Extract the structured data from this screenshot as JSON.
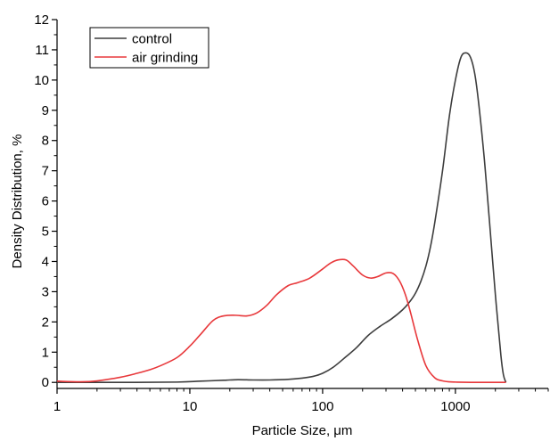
{
  "chart_data": {
    "type": "line",
    "title": "",
    "xlabel": "Particle Size, μm",
    "ylabel": "Density Distribution, %",
    "x_scale": "log",
    "xlim": [
      1,
      5000
    ],
    "ylim": [
      -0.2,
      12
    ],
    "x_ticks": [
      1,
      10,
      100,
      1000
    ],
    "x_tick_labels": [
      "1",
      "10",
      "100",
      "1000"
    ],
    "y_ticks": [
      0,
      1,
      2,
      3,
      4,
      5,
      6,
      7,
      8,
      9,
      10,
      11,
      12
    ],
    "y_tick_labels": [
      "0",
      "1",
      "2",
      "3",
      "4",
      "5",
      "6",
      "7",
      "8",
      "9",
      "10",
      "11",
      "12"
    ],
    "grid": false,
    "legend": "top-left",
    "series": [
      {
        "name": "control",
        "color": "#3d3d3d",
        "x": [
          1,
          3,
          8,
          12,
          18,
          23,
          30,
          40,
          55,
          70,
          85,
          100,
          120,
          150,
          180,
          220,
          270,
          330,
          400,
          450,
          500,
          550,
          600,
          650,
          700,
          800,
          900,
          1000,
          1100,
          1200,
          1300,
          1400,
          1500,
          1650,
          1800,
          2000,
          2200,
          2300,
          2400
        ],
        "y": [
          0,
          0,
          0.01,
          0.04,
          0.07,
          0.09,
          0.08,
          0.08,
          0.1,
          0.14,
          0.2,
          0.3,
          0.5,
          0.85,
          1.15,
          1.55,
          1.85,
          2.1,
          2.4,
          2.65,
          2.95,
          3.35,
          3.85,
          4.5,
          5.3,
          7.0,
          8.8,
          10.0,
          10.75,
          10.9,
          10.75,
          10.2,
          9.2,
          7.4,
          5.4,
          2.9,
          0.9,
          0.25,
          0
        ]
      },
      {
        "name": "air grinding",
        "color": "#e8383b",
        "x": [
          1,
          1.5,
          2,
          3,
          4,
          5,
          6,
          8,
          10,
          12,
          15,
          18,
          22,
          27,
          32,
          38,
          45,
          55,
          65,
          80,
          100,
          115,
          130,
          150,
          170,
          200,
          230,
          260,
          300,
          340,
          380,
          420,
          460,
          520,
          600,
          700,
          800,
          900,
          1000,
          1300,
          2400
        ],
        "y": [
          0.04,
          0.02,
          0.05,
          0.17,
          0.3,
          0.42,
          0.55,
          0.82,
          1.2,
          1.58,
          2.05,
          2.2,
          2.22,
          2.2,
          2.3,
          2.55,
          2.9,
          3.2,
          3.3,
          3.45,
          3.75,
          3.95,
          4.05,
          4.05,
          3.85,
          3.55,
          3.45,
          3.5,
          3.62,
          3.6,
          3.35,
          2.9,
          2.3,
          1.4,
          0.55,
          0.15,
          0.05,
          0.02,
          0.01,
          0,
          0
        ]
      }
    ]
  }
}
